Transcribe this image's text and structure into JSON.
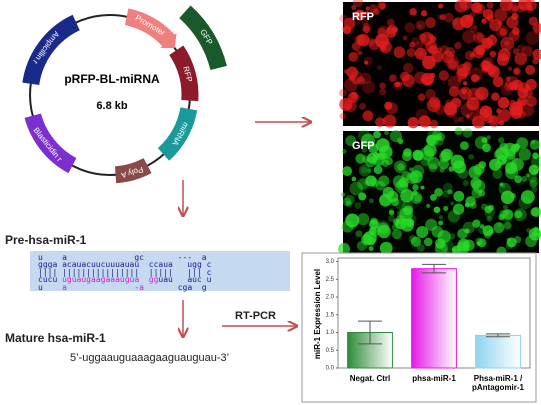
{
  "plasmid": {
    "name": "pRFP-BL-miRNA",
    "size": "6.8 kb",
    "features": {
      "promoter": "Promoter",
      "rfp": "RFP",
      "or": "or",
      "gfp": "GFP",
      "mirna": "miRNA",
      "poly_a": "Poly A",
      "blasticidin": "Blasticidin r",
      "ampicillin": "Ampicillin r"
    }
  },
  "images": {
    "rfp": "RFP",
    "gfp": "GFP"
  },
  "precursor": {
    "title": "Pre-hsa-miR-1",
    "hairpin": [
      [
        "u    a              gc       ---  a"
      ],
      [
        "ggga acauacuucuuuauau  ccaua   ugg c"
      ],
      [
        "|||| ||||||||||||||||  |||||   ||| c"
      ],
      [
        "cucu ",
        "uguaugaagaaaugua  gg",
        "uau   auc u"
      ],
      [
        "u    ",
        "a              -a",
        "       cga  g"
      ]
    ]
  },
  "mature": {
    "title": "Mature hsa-miR-1",
    "sequence": "5’-uggaauguaaagaaguauguau-3’"
  },
  "method": "RT-PCR",
  "chart_data": {
    "type": "bar",
    "y_label": "miR-1 Expression Level",
    "categories": [
      "Negat. Ctrl",
      "phsa-miR-1",
      "Phsa-miR-1 / pAntagomir-1"
    ],
    "values": [
      1.0,
      2.8,
      0.92
    ],
    "errors": [
      0.32,
      0.12,
      0.04
    ],
    "colors": [
      "#2e8b3a",
      "#e619e6",
      "#8fd3f0"
    ],
    "ylim": [
      0,
      3.1
    ],
    "yticks": [
      {
        "value": 0,
        "label": "0.0"
      },
      0.5,
      {
        "value": 1,
        "label": "1.0"
      },
      1.5,
      {
        "value": 2,
        "label": "2.0"
      },
      2.5,
      {
        "value": 3,
        "label": "3.0"
      }
    ]
  }
}
